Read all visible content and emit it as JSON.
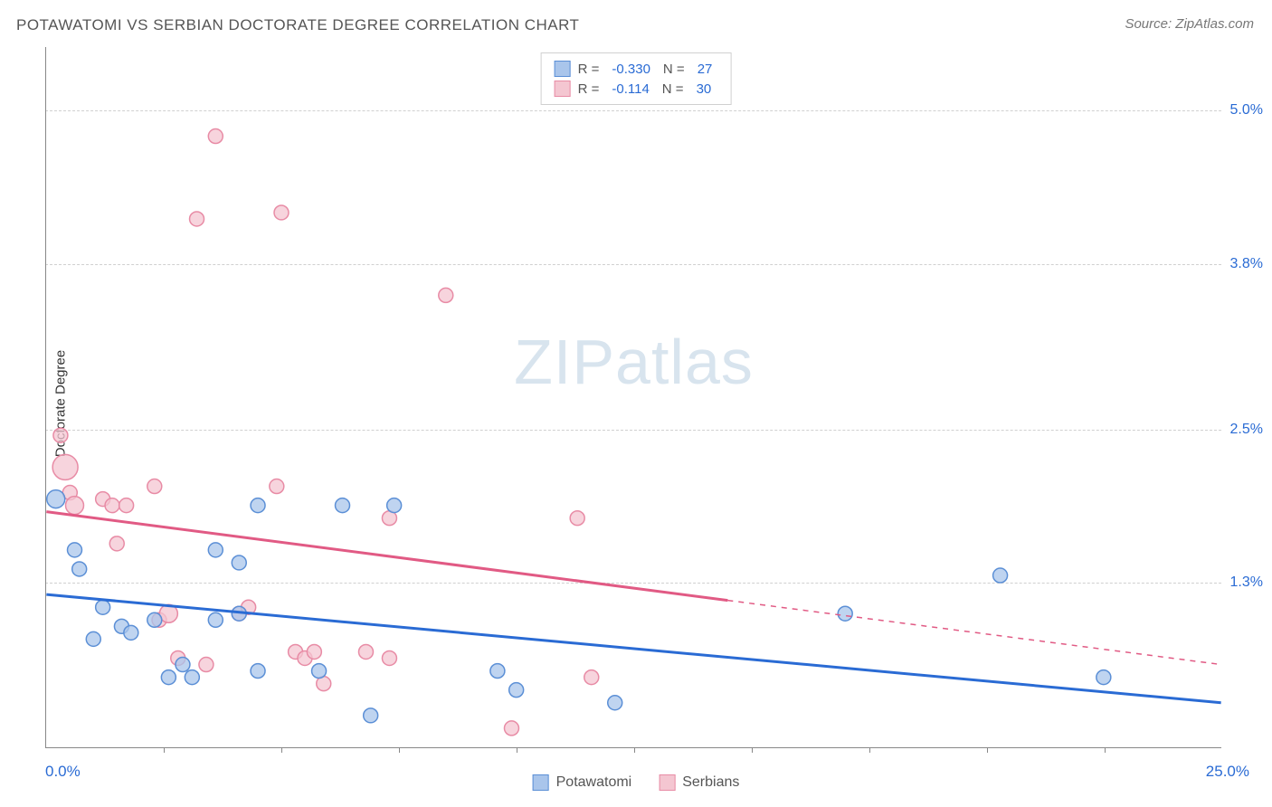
{
  "title": "POTAWATOMI VS SERBIAN DOCTORATE DEGREE CORRELATION CHART",
  "source": "Source: ZipAtlas.com",
  "watermark_zip": "ZIP",
  "watermark_atlas": "atlas",
  "y_axis_label": "Doctorate Degree",
  "chart": {
    "type": "scatter",
    "xlim": [
      0.0,
      25.0
    ],
    "ylim": [
      0.0,
      5.5
    ],
    "x_tick_start": "0.0%",
    "x_tick_end": "25.0%",
    "x_tick_positions": [
      2.5,
      5.0,
      7.5,
      10.0,
      12.5,
      15.0,
      17.5,
      20.0,
      22.5
    ],
    "y_ticks": [
      {
        "value": 1.3,
        "label": "1.3%"
      },
      {
        "value": 2.5,
        "label": "2.5%"
      },
      {
        "value": 3.8,
        "label": "3.8%"
      },
      {
        "value": 5.0,
        "label": "5.0%"
      }
    ],
    "grid_color": "#d0d0d0",
    "background_color": "#ffffff",
    "series": [
      {
        "name": "Potawatomi",
        "color_fill": "#a9c5eb",
        "color_stroke": "#5b8fd6",
        "line_color": "#2a6bd4",
        "marker_radius_default": 8,
        "R": "-0.330",
        "N": "27",
        "trend_start": {
          "x": 0.0,
          "y": 1.2
        },
        "trend_end": {
          "x": 25.0,
          "y": 0.35
        },
        "trend_solid_until_x": 25.0,
        "points": [
          {
            "x": 0.2,
            "y": 1.95,
            "r": 10
          },
          {
            "x": 0.6,
            "y": 1.55
          },
          {
            "x": 0.7,
            "y": 1.4
          },
          {
            "x": 1.2,
            "y": 1.1
          },
          {
            "x": 1.0,
            "y": 0.85
          },
          {
            "x": 1.6,
            "y": 0.95
          },
          {
            "x": 1.8,
            "y": 0.9
          },
          {
            "x": 2.3,
            "y": 1.0
          },
          {
            "x": 2.6,
            "y": 0.55
          },
          {
            "x": 2.9,
            "y": 0.65
          },
          {
            "x": 3.1,
            "y": 0.55
          },
          {
            "x": 3.6,
            "y": 1.55
          },
          {
            "x": 3.6,
            "y": 1.0
          },
          {
            "x": 4.1,
            "y": 1.45
          },
          {
            "x": 4.1,
            "y": 1.05
          },
          {
            "x": 4.5,
            "y": 0.6
          },
          {
            "x": 4.5,
            "y": 1.9
          },
          {
            "x": 5.8,
            "y": 0.6
          },
          {
            "x": 6.3,
            "y": 1.9
          },
          {
            "x": 6.9,
            "y": 0.25
          },
          {
            "x": 7.4,
            "y": 1.9
          },
          {
            "x": 9.6,
            "y": 0.6
          },
          {
            "x": 10.0,
            "y": 0.45
          },
          {
            "x": 12.1,
            "y": 0.35
          },
          {
            "x": 17.0,
            "y": 1.05
          },
          {
            "x": 20.3,
            "y": 1.35
          },
          {
            "x": 22.5,
            "y": 0.55
          }
        ]
      },
      {
        "name": "Serbians",
        "color_fill": "#f4c6d1",
        "color_stroke": "#e88ba5",
        "line_color": "#e15a84",
        "marker_radius_default": 8,
        "R": "-0.114",
        "N": "30",
        "trend_start": {
          "x": 0.0,
          "y": 1.85
        },
        "trend_end": {
          "x": 25.0,
          "y": 0.65
        },
        "trend_solid_until_x": 14.5,
        "points": [
          {
            "x": 0.3,
            "y": 2.45
          },
          {
            "x": 0.4,
            "y": 2.2,
            "r": 14
          },
          {
            "x": 0.5,
            "y": 2.0
          },
          {
            "x": 0.6,
            "y": 1.9,
            "r": 10
          },
          {
            "x": 1.2,
            "y": 1.95
          },
          {
            "x": 1.4,
            "y": 1.9
          },
          {
            "x": 1.5,
            "y": 1.6
          },
          {
            "x": 1.7,
            "y": 1.9
          },
          {
            "x": 2.3,
            "y": 2.05
          },
          {
            "x": 2.4,
            "y": 1.0
          },
          {
            "x": 2.6,
            "y": 1.05,
            "r": 10
          },
          {
            "x": 2.8,
            "y": 0.7
          },
          {
            "x": 3.2,
            "y": 4.15
          },
          {
            "x": 3.4,
            "y": 0.65
          },
          {
            "x": 3.6,
            "y": 4.8
          },
          {
            "x": 4.1,
            "y": 1.05
          },
          {
            "x": 4.3,
            "y": 1.1
          },
          {
            "x": 4.9,
            "y": 2.05
          },
          {
            "x": 5.0,
            "y": 4.2
          },
          {
            "x": 5.3,
            "y": 0.75
          },
          {
            "x": 5.5,
            "y": 0.7
          },
          {
            "x": 5.7,
            "y": 0.75
          },
          {
            "x": 5.9,
            "y": 0.5
          },
          {
            "x": 6.8,
            "y": 0.75
          },
          {
            "x": 7.3,
            "y": 1.8
          },
          {
            "x": 7.3,
            "y": 0.7
          },
          {
            "x": 8.5,
            "y": 3.55
          },
          {
            "x": 9.9,
            "y": 0.15
          },
          {
            "x": 11.3,
            "y": 1.8
          },
          {
            "x": 11.6,
            "y": 0.55
          }
        ]
      }
    ]
  },
  "legend_top": {
    "R_label": "R =",
    "N_label": "N ="
  },
  "legend_bottom": {
    "label1": "Potawatomi",
    "label2": "Serbians"
  }
}
